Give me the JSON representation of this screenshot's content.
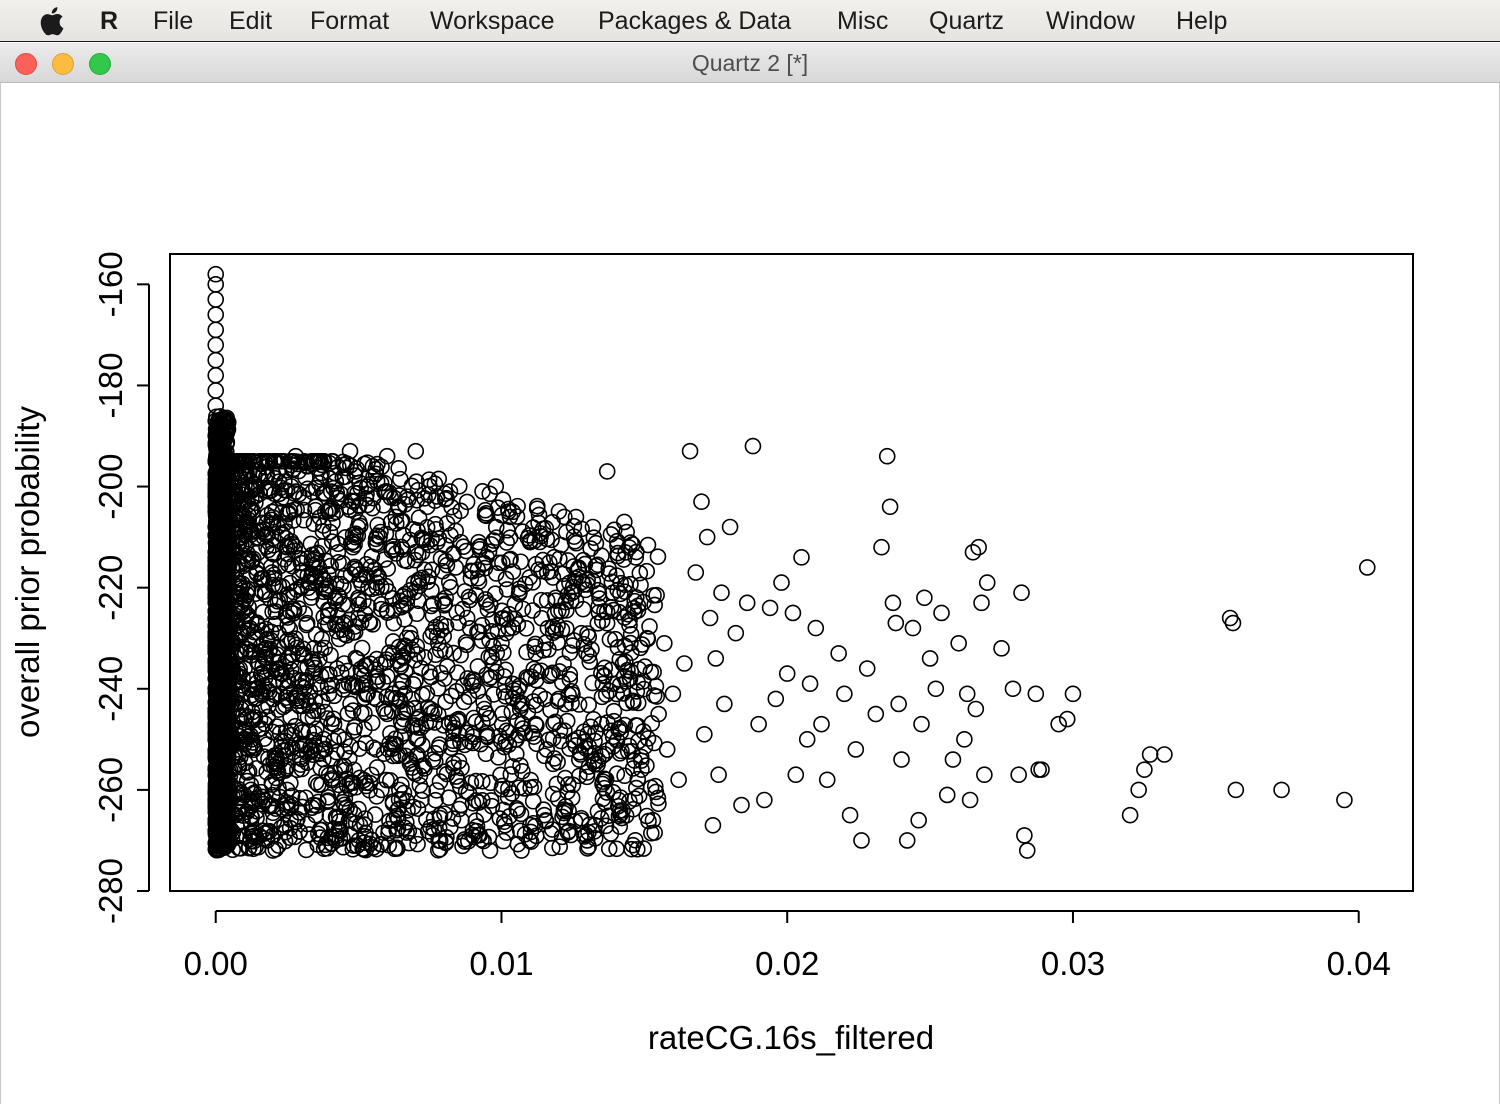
{
  "menubar": {
    "apple_icon": "apple-icon",
    "items": [
      "R",
      "File",
      "Edit",
      "Format",
      "Workspace",
      "Packages & Data",
      "Misc",
      "Quartz",
      "Window",
      "Help"
    ]
  },
  "window": {
    "title": "Quartz 2 [*]",
    "controls": [
      "close",
      "minimize",
      "zoom"
    ]
  },
  "colors": {
    "menubar_bg": "#e9e7e3",
    "titlebar_bg": "#dcdcdc",
    "close": "#fc605b",
    "minimize": "#fdbc40",
    "zoom": "#34c84a",
    "points": "#000000"
  },
  "chart_data": {
    "type": "scatter",
    "title": "",
    "xlabel": "rateCG.16s_filtered",
    "ylabel": "overall prior probability",
    "xlim": [
      -0.0016,
      0.0419
    ],
    "ylim": [
      -280,
      -154
    ],
    "x_ticks": [
      0.0,
      0.01,
      0.02,
      0.03,
      0.04
    ],
    "x_tick_labels": [
      "0.00",
      "0.01",
      "0.02",
      "0.03",
      "0.04"
    ],
    "y_ticks": [
      -280,
      -260,
      -240,
      -220,
      -200,
      -180,
      -160
    ],
    "y_tick_labels": [
      "-280",
      "-260",
      "-240",
      "-220",
      "-200",
      "-180",
      "-160"
    ],
    "marker": "open-circle",
    "grid": false,
    "legend": "none",
    "series": [
      {
        "points": [
          [
            0.0,
            -158
          ],
          [
            0.0,
            -160
          ],
          [
            0.0,
            -163
          ],
          [
            0.0,
            -166
          ],
          [
            0.0,
            -169
          ],
          [
            0.0,
            -172
          ],
          [
            0.0,
            -175
          ],
          [
            0.0,
            -178
          ],
          [
            0.0,
            -181
          ],
          [
            0.0,
            -184
          ],
          [
            0.0,
            -187
          ],
          [
            0.0,
            -190
          ],
          [
            0.0001,
            -193
          ],
          [
            0.0001,
            -196
          ],
          [
            0.0001,
            -199
          ],
          [
            0.0,
            -202
          ],
          [
            0.0001,
            -205
          ],
          [
            0.0,
            -208
          ],
          [
            0.0001,
            -211
          ],
          [
            0.0,
            -214
          ],
          [
            0.0001,
            -217
          ],
          [
            0.0,
            -220
          ],
          [
            0.0001,
            -223
          ],
          [
            0.0,
            -226
          ],
          [
            0.0001,
            -229
          ],
          [
            0.0,
            -232
          ],
          [
            0.0001,
            -235
          ],
          [
            0.0,
            -238
          ],
          [
            0.0001,
            -241
          ],
          [
            0.0,
            -244
          ],
          [
            0.0001,
            -247
          ],
          [
            0.0,
            -250
          ],
          [
            0.0001,
            -253
          ],
          [
            0.0,
            -256
          ],
          [
            0.0001,
            -259
          ],
          [
            0.0,
            -262
          ],
          [
            0.0001,
            -265
          ],
          [
            0.0,
            -268
          ],
          [
            0.0001,
            -271
          ],
          [
            0.0002,
            -271
          ],
          [
            0.0005,
            -270
          ],
          [
            0.0007,
            -265
          ],
          [
            0.0009,
            -210
          ],
          [
            0.001,
            -195
          ],
          [
            0.0011,
            -198
          ],
          [
            0.0013,
            -195
          ],
          [
            0.0018,
            -270
          ],
          [
            0.002,
            -272
          ],
          [
            0.0022,
            -271
          ],
          [
            0.0025,
            -260
          ],
          [
            0.0025,
            -212
          ],
          [
            0.0028,
            -201
          ],
          [
            0.0028,
            -194
          ],
          [
            0.003,
            -220
          ],
          [
            0.0032,
            -196
          ],
          [
            0.0035,
            -204
          ],
          [
            0.0035,
            -265
          ],
          [
            0.0038,
            -252
          ],
          [
            0.004,
            -209
          ],
          [
            0.0042,
            -205
          ],
          [
            0.0043,
            -268
          ],
          [
            0.0045,
            -235
          ],
          [
            0.0047,
            -193
          ],
          [
            0.0048,
            -212
          ],
          [
            0.005,
            -226
          ],
          [
            0.0052,
            -248
          ],
          [
            0.0053,
            -200
          ],
          [
            0.0055,
            -196
          ],
          [
            0.0057,
            -218
          ],
          [
            0.0058,
            -260
          ],
          [
            0.006,
            -194
          ],
          [
            0.0062,
            -241
          ],
          [
            0.0063,
            -206
          ],
          [
            0.0065,
            -259
          ],
          [
            0.0068,
            -229
          ],
          [
            0.007,
            -193
          ],
          [
            0.0072,
            -262
          ],
          [
            0.0074,
            -204
          ],
          [
            0.0076,
            -254
          ],
          [
            0.0078,
            -270
          ],
          [
            0.008,
            -238
          ],
          [
            0.0082,
            -201
          ],
          [
            0.0084,
            -216
          ],
          [
            0.0086,
            -266
          ],
          [
            0.0088,
            -226
          ],
          [
            0.009,
            -268
          ],
          [
            0.0092,
            -211
          ],
          [
            0.0094,
            -244
          ],
          [
            0.0096,
            -272
          ],
          [
            0.0098,
            -200
          ],
          [
            0.01,
            -231
          ],
          [
            0.0103,
            -206
          ],
          [
            0.0105,
            -250
          ],
          [
            0.0107,
            -272
          ],
          [
            0.011,
            -211
          ],
          [
            0.0112,
            -233
          ],
          [
            0.0115,
            -265
          ],
          [
            0.0118,
            -218
          ],
          [
            0.012,
            -242
          ],
          [
            0.0122,
            -206
          ],
          [
            0.0125,
            -259
          ],
          [
            0.0128,
            -229
          ],
          [
            0.013,
            -270
          ],
          [
            0.0132,
            -208
          ],
          [
            0.0135,
            -247
          ],
          [
            0.0137,
            -197
          ],
          [
            0.0139,
            -221
          ],
          [
            0.0141,
            -262
          ],
          [
            0.0143,
            -207
          ],
          [
            0.0145,
            -238
          ],
          [
            0.0147,
            -214
          ],
          [
            0.0149,
            -256
          ],
          [
            0.0151,
            -230
          ],
          [
            0.0153,
            -266
          ],
          [
            0.0155,
            -245
          ],
          [
            0.0157,
            -231
          ],
          [
            0.0158,
            -252
          ],
          [
            0.016,
            -241
          ],
          [
            0.0162,
            -258
          ],
          [
            0.0164,
            -235
          ],
          [
            0.0166,
            -193
          ],
          [
            0.0168,
            -217
          ],
          [
            0.017,
            -203
          ],
          [
            0.0171,
            -249
          ],
          [
            0.0172,
            -210
          ],
          [
            0.0173,
            -226
          ],
          [
            0.0174,
            -267
          ],
          [
            0.0175,
            -234
          ],
          [
            0.0176,
            -257
          ],
          [
            0.0177,
            -221
          ],
          [
            0.0178,
            -243
          ],
          [
            0.018,
            -208
          ],
          [
            0.0182,
            -229
          ],
          [
            0.0184,
            -263
          ],
          [
            0.0186,
            -223
          ],
          [
            0.0188,
            -192
          ],
          [
            0.019,
            -247
          ],
          [
            0.0192,
            -262
          ],
          [
            0.0194,
            -224
          ],
          [
            0.0196,
            -242
          ],
          [
            0.0198,
            -219
          ],
          [
            0.02,
            -237
          ],
          [
            0.0202,
            -225
          ],
          [
            0.0203,
            -257
          ],
          [
            0.0205,
            -214
          ],
          [
            0.0207,
            -250
          ],
          [
            0.0208,
            -239
          ],
          [
            0.021,
            -228
          ],
          [
            0.0212,
            -247
          ],
          [
            0.0214,
            -258
          ],
          [
            0.0218,
            -233
          ],
          [
            0.022,
            -241
          ],
          [
            0.0222,
            -265
          ],
          [
            0.0224,
            -252
          ],
          [
            0.0226,
            -270
          ],
          [
            0.0228,
            -236
          ],
          [
            0.0231,
            -245
          ],
          [
            0.0233,
            -212
          ],
          [
            0.0235,
            -194
          ],
          [
            0.0236,
            -204
          ],
          [
            0.0237,
            -223
          ],
          [
            0.0238,
            -227
          ],
          [
            0.0239,
            -243
          ],
          [
            0.024,
            -254
          ],
          [
            0.0242,
            -270
          ],
          [
            0.0244,
            -228
          ],
          [
            0.0246,
            -266
          ],
          [
            0.0247,
            -247
          ],
          [
            0.0248,
            -222
          ],
          [
            0.025,
            -234
          ],
          [
            0.0252,
            -240
          ],
          [
            0.0254,
            -225
          ],
          [
            0.0256,
            -261
          ],
          [
            0.0258,
            -254
          ],
          [
            0.026,
            -231
          ],
          [
            0.0262,
            -250
          ],
          [
            0.0263,
            -241
          ],
          [
            0.0264,
            -262
          ],
          [
            0.0265,
            -213
          ],
          [
            0.0266,
            -244
          ],
          [
            0.0267,
            -212
          ],
          [
            0.0268,
            -223
          ],
          [
            0.0269,
            -257
          ],
          [
            0.027,
            -219
          ],
          [
            0.0275,
            -232
          ],
          [
            0.0279,
            -240
          ],
          [
            0.0281,
            -257
          ],
          [
            0.0282,
            -221
          ],
          [
            0.0283,
            -269
          ],
          [
            0.0284,
            -272
          ],
          [
            0.0287,
            -241
          ],
          [
            0.0288,
            -256
          ],
          [
            0.0289,
            -256
          ],
          [
            0.0295,
            -247
          ],
          [
            0.0298,
            -246
          ],
          [
            0.03,
            -241
          ],
          [
            0.032,
            -265
          ],
          [
            0.0323,
            -260
          ],
          [
            0.0325,
            -256
          ],
          [
            0.0327,
            -253
          ],
          [
            0.0332,
            -253
          ],
          [
            0.0355,
            -226
          ],
          [
            0.0356,
            -227
          ],
          [
            0.0357,
            -260
          ],
          [
            0.0373,
            -260
          ],
          [
            0.0395,
            -262
          ],
          [
            0.0403,
            -216
          ]
        ]
      }
    ]
  }
}
